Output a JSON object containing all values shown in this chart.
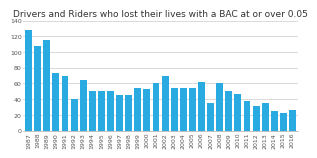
{
  "title": "Drivers and Riders who lost their lives with a BAC at or over 0.05",
  "years": [
    1987,
    1988,
    1989,
    1990,
    1991,
    1992,
    1993,
    1994,
    1995,
    1996,
    1997,
    1998,
    1999,
    2000,
    2001,
    2002,
    2003,
    2004,
    2005,
    2006,
    2007,
    2008,
    2009,
    2010,
    2011,
    2012,
    2013,
    2014,
    2015,
    2016
  ],
  "values": [
    128,
    107,
    115,
    73,
    70,
    40,
    64,
    50,
    50,
    51,
    45,
    46,
    54,
    53,
    61,
    70,
    54,
    54,
    54,
    62,
    35,
    61,
    50,
    47,
    38,
    32,
    35,
    25,
    23,
    26
  ],
  "bar_color": "#29ABE2",
  "bg_color": "#FFFFFF",
  "ylim": [
    0,
    140
  ],
  "yticks": [
    0,
    20,
    40,
    60,
    80,
    100,
    120,
    140
  ],
  "title_fontsize": 6.5,
  "tick_fontsize": 4.5
}
